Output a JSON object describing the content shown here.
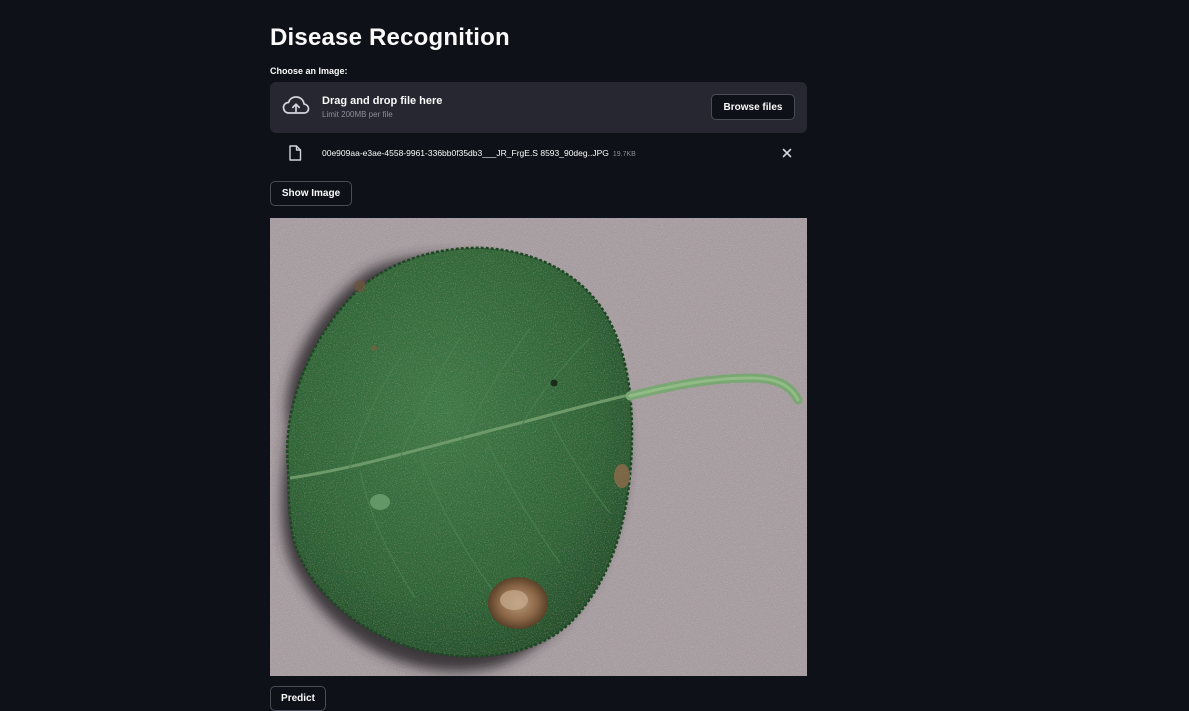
{
  "page": {
    "title": "Disease Recognition"
  },
  "uploader": {
    "label": "Choose an Image:",
    "drop_text": "Drag and drop file here",
    "limit_text": "Limit 200MB per file",
    "browse_label": "Browse files",
    "icon": "cloud-upload-icon"
  },
  "file": {
    "name": "00e909aa-e3ae-4558-9961-336bb0f35db3___JR_FrgE.S 8593_90deg..JPG",
    "size": "19.7KB",
    "icon": "file-icon",
    "remove_icon": "close-icon"
  },
  "actions": {
    "show_image_label": "Show Image",
    "predict_label": "Predict"
  },
  "colors": {
    "background": "#0e1117",
    "dropzone": "#262730",
    "text": "#fafafa",
    "muted": "#8b8d98"
  }
}
